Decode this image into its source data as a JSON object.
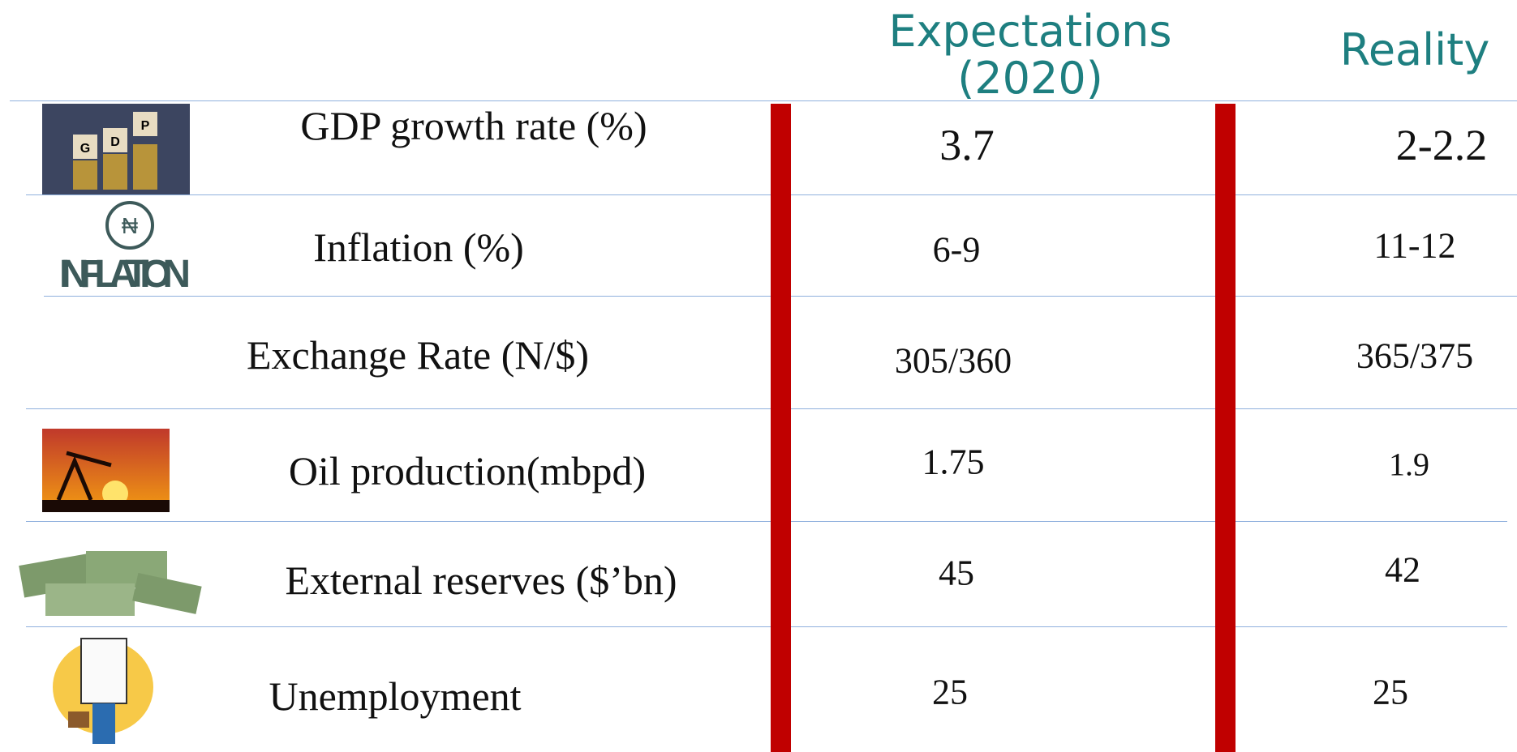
{
  "header": {
    "columns": [
      "Expectations (2020)",
      "Reality"
    ]
  },
  "table": {
    "rows": [
      [
        "GDP growth rate (%)",
        "3.7",
        "2-2.2"
      ],
      [
        "Inflation (%)",
        "6-9",
        "11-12"
      ],
      [
        "Exchange Rate (N/$)",
        "305/360",
        "365/375"
      ],
      [
        "Oil production(mbpd)",
        "1.75",
        "1.9"
      ],
      [
        "External reserves ($’bn)",
        "45",
        "42"
      ],
      [
        "Unemployment",
        "25",
        "25"
      ]
    ]
  }
}
